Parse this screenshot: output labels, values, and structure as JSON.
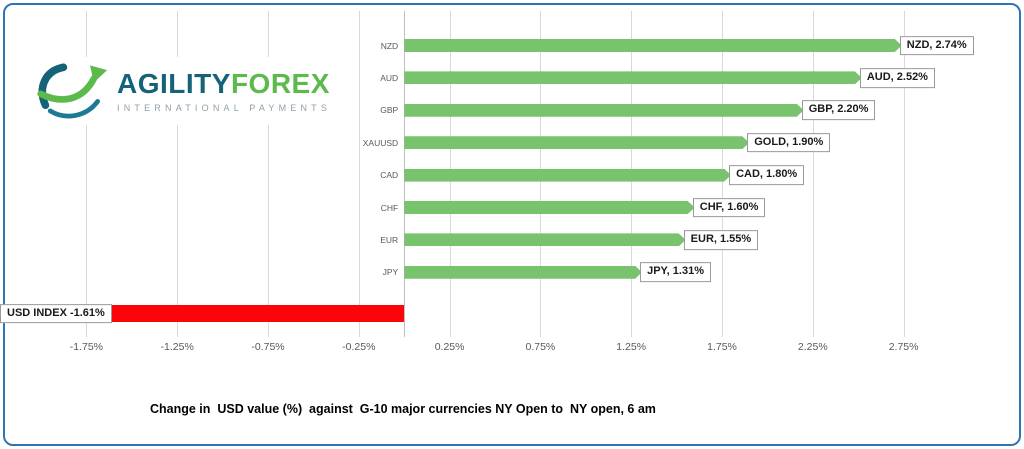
{
  "frame": {
    "border_color": "#2E75B6"
  },
  "logo": {
    "brand_primary": "AGILITY",
    "brand_secondary": "FOREX",
    "tagline": "INTERNATIONAL PAYMENTS",
    "brand_primary_color": "#156279",
    "brand_secondary_color": "#5CB94C",
    "tagline_color": "#8FA0AA",
    "icon": "swoosh-globe-icon"
  },
  "chart_data": {
    "type": "bar",
    "orientation": "horizontal",
    "title": "Change in  USD value (%)  against  G-10 major currencies NY Open to  NY open, 6 am",
    "xlabel": "",
    "ylabel": "",
    "xlim": [
      -2.0,
      3.0
    ],
    "grid": true,
    "grid_color": "#D9D9D9",
    "bar_color_positive": "#79C36F",
    "bar_color_negative": "#FA050A",
    "x_ticks": [
      {
        "value": -1.75,
        "label": "-1.75%"
      },
      {
        "value": -1.25,
        "label": "-1.25%"
      },
      {
        "value": -0.75,
        "label": "-0.75%"
      },
      {
        "value": -0.25,
        "label": "-0.25%"
      },
      {
        "value": 0.25,
        "label": "0.25%"
      },
      {
        "value": 0.75,
        "label": "0.75%"
      },
      {
        "value": 1.25,
        "label": "1.25%"
      },
      {
        "value": 1.75,
        "label": "1.75%"
      },
      {
        "value": 2.25,
        "label": "2.25%"
      },
      {
        "value": 2.75,
        "label": "2.75%"
      }
    ],
    "bars": [
      {
        "category": "NZD",
        "axis_label": "NZD",
        "value": 2.74,
        "label": "NZD, 2.74%"
      },
      {
        "category": "AUD",
        "axis_label": "AUD",
        "value": 2.52,
        "label": "AUD, 2.52%"
      },
      {
        "category": "GBP",
        "axis_label": "GBP",
        "value": 2.2,
        "label": "GBP, 2.20%"
      },
      {
        "category": "XAUUSD",
        "axis_label": "XAUUSD",
        "value": 1.9,
        "label": "GOLD, 1.90%"
      },
      {
        "category": "CAD",
        "axis_label": "CAD",
        "value": 1.8,
        "label": "CAD, 1.80%"
      },
      {
        "category": "CHF",
        "axis_label": "CHF",
        "value": 1.6,
        "label": "CHF, 1.60%"
      },
      {
        "category": "EUR",
        "axis_label": "EUR",
        "value": 1.55,
        "label": "EUR, 1.55%"
      },
      {
        "category": "JPY",
        "axis_label": "JPY",
        "value": 1.31,
        "label": "JPY, 1.31%"
      },
      {
        "category": "USD INDEX",
        "axis_label": "",
        "value": -1.61,
        "label": "USD INDEX -1.61%"
      }
    ]
  }
}
